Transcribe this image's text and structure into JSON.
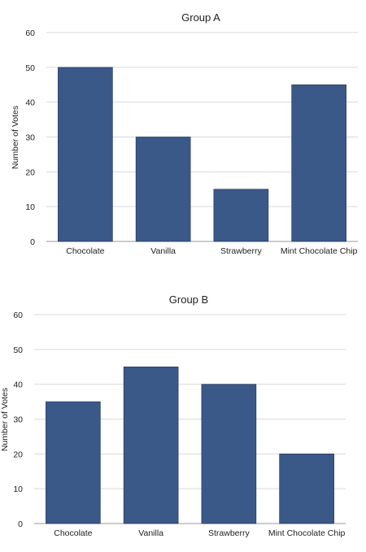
{
  "chart_data": [
    {
      "type": "bar",
      "title": "Group A",
      "xlabel": "",
      "ylabel": "Number of Votes",
      "categories": [
        "Chocolate",
        "Vanilla",
        "Strawberry",
        "Mint Chocolate Chip"
      ],
      "values": [
        50,
        30,
        15,
        45
      ],
      "ylim": [
        0,
        60
      ],
      "yticks": [
        0,
        10,
        20,
        30,
        40,
        50,
        60
      ],
      "grid": true,
      "bar_color": "#3a5888"
    },
    {
      "type": "bar",
      "title": "Group B",
      "xlabel": "",
      "ylabel": "Number of Votes",
      "categories": [
        "Chocolate",
        "Vanilla",
        "Strawberry",
        "Mint Chocolate Chip"
      ],
      "values": [
        35,
        45,
        40,
        20
      ],
      "ylim": [
        0,
        60
      ],
      "yticks": [
        0,
        10,
        20,
        30,
        40,
        50,
        60
      ],
      "grid": true,
      "bar_color": "#3a5888"
    }
  ]
}
